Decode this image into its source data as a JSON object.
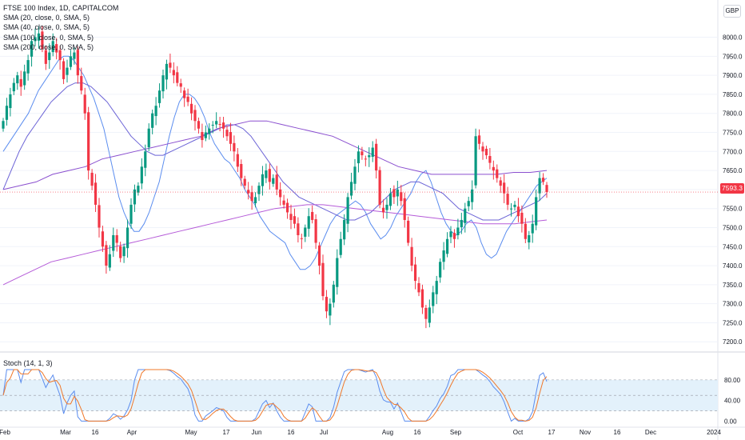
{
  "header": {
    "title": "FTSE 100 Index, 1D, CAPITALCOM",
    "indicators": [
      "SMA (20, close, 0, SMA, 5)",
      "SMA (40, close, 0, SMA, 5)",
      "SMA (100, close, 0, SMA, 5)",
      "SMA (200, close, 0, SMA, 5)"
    ],
    "currency": "GBP"
  },
  "last_price": "7593.3",
  "colors": {
    "up": "#089981",
    "down": "#f23645",
    "sma20": "#5b8def",
    "sma40": "#6b63d6",
    "sma100": "#8a4fcf",
    "sma200": "#b55bd8",
    "stoch_k": "#5b8def",
    "stoch_d": "#f0782a",
    "band": "#e3f1fb"
  },
  "stoch_panel": {
    "label": "Stoch (14, 1, 3)",
    "ticks": [
      "80.00",
      "40.00",
      "0.00"
    ]
  },
  "chart_data": {
    "type": "candlestick",
    "title": "FTSE 100 Index, 1D, CAPITALCOM",
    "ylim": [
      7190,
      8060
    ],
    "y_ticks": [
      "8000.0",
      "7950.0",
      "7900.0",
      "7850.0",
      "7800.0",
      "7750.0",
      "7700.0",
      "7650.0",
      "7600.0",
      "7550.0",
      "7500.0",
      "7450.0",
      "7400.0",
      "7350.0",
      "7300.0",
      "7250.0",
      "7200.0"
    ],
    "x_ticks": [
      "Feb",
      "Mar",
      "16",
      "Apr",
      "May",
      "17",
      "Jun",
      "16",
      "Jul",
      "Aug",
      "16",
      "Sep",
      "Oct",
      "17",
      "Nov",
      "16",
      "Dec",
      "2024"
    ],
    "close": [
      7780,
      7820,
      7850,
      7880,
      7900,
      7870,
      7910,
      7940,
      7990,
      8000,
      8010,
      7970,
      7930,
      7960,
      7990,
      7960,
      7940,
      7890,
      7920,
      7950,
      7960,
      7900,
      7860,
      7800,
      7650,
      7610,
      7560,
      7500,
      7450,
      7400,
      7430,
      7480,
      7460,
      7420,
      7450,
      7500,
      7560,
      7600,
      7610,
      7660,
      7700,
      7760,
      7800,
      7820,
      7860,
      7900,
      7930,
      7920,
      7900,
      7880,
      7870,
      7840,
      7830,
      7800,
      7780,
      7760,
      7730,
      7750,
      7760,
      7770,
      7780,
      7770,
      7760,
      7740,
      7720,
      7700,
      7660,
      7630,
      7610,
      7590,
      7570,
      7580,
      7610,
      7640,
      7650,
      7620,
      7630,
      7600,
      7580,
      7560,
      7540,
      7520,
      7510,
      7480,
      7470,
      7500,
      7530,
      7520,
      7460,
      7400,
      7320,
      7280,
      7300,
      7350,
      7420,
      7470,
      7520,
      7580,
      7620,
      7660,
      7700,
      7690,
      7680,
      7690,
      7710,
      7650,
      7560,
      7540,
      7560,
      7590,
      7580,
      7600,
      7570,
      7520,
      7460,
      7400,
      7360,
      7330,
      7290,
      7260,
      7290,
      7330,
      7360,
      7410,
      7440,
      7470,
      7490,
      7470,
      7500,
      7520,
      7550,
      7570,
      7600,
      7740,
      7720,
      7700,
      7690,
      7670,
      7650,
      7630,
      7610,
      7590,
      7560,
      7550,
      7560,
      7530,
      7510,
      7470,
      7480,
      7510,
      7580,
      7630,
      7620,
      7593.3
    ],
    "series": [
      {
        "name": "SMA (20, close, 0, SMA, 5)",
        "values": [
          7700,
          7720,
          7740,
          7760,
          7780,
          7800,
          7830,
          7860,
          7880,
          7900,
          7920,
          7940,
          7950,
          7950,
          7940,
          7920,
          7900,
          7870,
          7840,
          7800,
          7760,
          7700,
          7640,
          7580,
          7540,
          7510,
          7490,
          7490,
          7510,
          7540,
          7580,
          7620,
          7680,
          7740,
          7790,
          7830,
          7850,
          7850,
          7840,
          7820,
          7790,
          7750,
          7720,
          7700,
          7680,
          7670,
          7650,
          7630,
          7600,
          7580,
          7560,
          7530,
          7510,
          7490,
          7480,
          7470,
          7460,
          7430,
          7410,
          7390,
          7390,
          7400,
          7420,
          7450,
          7480,
          7510,
          7530,
          7540,
          7550,
          7560,
          7570,
          7560,
          7540,
          7510,
          7490,
          7470,
          7480,
          7500,
          7530,
          7550,
          7570,
          7590,
          7620,
          7640,
          7650,
          7620,
          7580,
          7540,
          7510,
          7490,
          7480,
          7490,
          7510,
          7520,
          7500,
          7460,
          7430,
          7420,
          7430,
          7460,
          7490,
          7510,
          7530,
          7550,
          7570,
          7590,
          7610,
          7620,
          7630
        ]
      },
      {
        "name": "SMA (40, close, 0, SMA, 5)",
        "values": [
          7600,
          7650,
          7700,
          7740,
          7770,
          7800,
          7830,
          7850,
          7870,
          7880,
          7880,
          7870,
          7850,
          7830,
          7800,
          7770,
          7740,
          7720,
          7700,
          7690,
          7690,
          7700,
          7710,
          7720,
          7730,
          7740,
          7750,
          7760,
          7770,
          7770,
          7760,
          7740,
          7710,
          7680,
          7650,
          7620,
          7600,
          7580,
          7570,
          7560,
          7550,
          7540,
          7530,
          7520,
          7520,
          7530,
          7540,
          7560,
          7580,
          7600,
          7610,
          7620,
          7620,
          7610,
          7600,
          7590,
          7570,
          7550,
          7540,
          7530,
          7520,
          7520,
          7520,
          7530,
          7540,
          7550,
          7560,
          7570,
          7590
        ]
      },
      {
        "name": "SMA (100, close, 0, SMA, 5)",
        "values": [
          7600,
          7610,
          7620,
          7640,
          7650,
          7660,
          7680,
          7690,
          7700,
          7710,
          7720,
          7730,
          7740,
          7760,
          7770,
          7780,
          7780,
          7770,
          7760,
          7750,
          7740,
          7720,
          7700,
          7680,
          7660,
          7650,
          7640,
          7640,
          7640,
          7640,
          7640,
          7645,
          7645,
          7650
        ]
      },
      {
        "name": "SMA (200, close, 0, SMA, 5)",
        "values": [
          7350,
          7370,
          7390,
          7410,
          7420,
          7430,
          7440,
          7450,
          7460,
          7470,
          7480,
          7490,
          7500,
          7510,
          7520,
          7530,
          7540,
          7550,
          7555,
          7560,
          7560,
          7555,
          7550,
          7545,
          7540,
          7535,
          7530,
          7525,
          7520,
          7515,
          7510,
          7510,
          7510,
          7515,
          7520
        ]
      }
    ],
    "stochastic": {
      "name": "Stoch (14, 1, 3)",
      "ylim": [
        0,
        100
      ],
      "bands": [
        80,
        20
      ],
      "midline": 50
    }
  }
}
